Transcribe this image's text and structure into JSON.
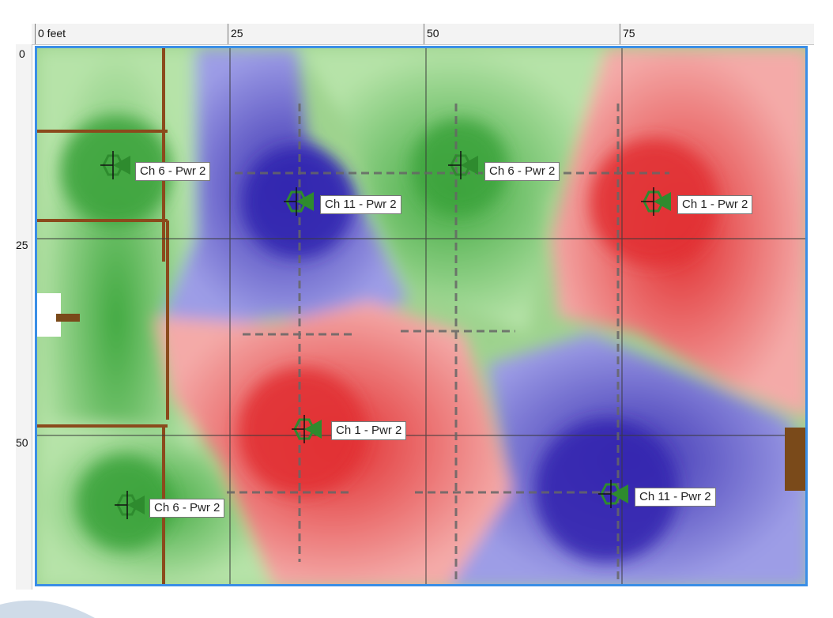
{
  "ruler": {
    "x_ticks": [
      "0 feet",
      "25",
      "50",
      "75"
    ],
    "y_ticks": [
      "0",
      "25",
      "50"
    ]
  },
  "access_points": [
    {
      "label": "Ch 6 - Pwr 2",
      "channel": 6,
      "power": 2,
      "color": "#3aa43a"
    },
    {
      "label": "Ch 11 - Pwr 2",
      "channel": 11,
      "power": 2,
      "color": "#3aa43a"
    },
    {
      "label": "Ch 6 - Pwr 2",
      "channel": 6,
      "power": 2,
      "color": "#3aa43a"
    },
    {
      "label": "Ch 1 - Pwr 2",
      "channel": 1,
      "power": 2,
      "color": "#3aa43a"
    },
    {
      "label": "Ch 1 - Pwr 2",
      "channel": 1,
      "power": 2,
      "color": "#3aa43a"
    },
    {
      "label": "Ch 6 - Pwr 2",
      "channel": 6,
      "power": 2,
      "color": "#3aa43a"
    },
    {
      "label": "Ch 11 - Pwr 2",
      "channel": 11,
      "power": 2,
      "color": "#3aa43a"
    }
  ],
  "colors": {
    "channel_1": "#e8585a",
    "channel_6": "#6cc060",
    "channel_11": "#5050c0",
    "frame_border": "#3a8ee6",
    "marker": "#2e8b2e"
  }
}
